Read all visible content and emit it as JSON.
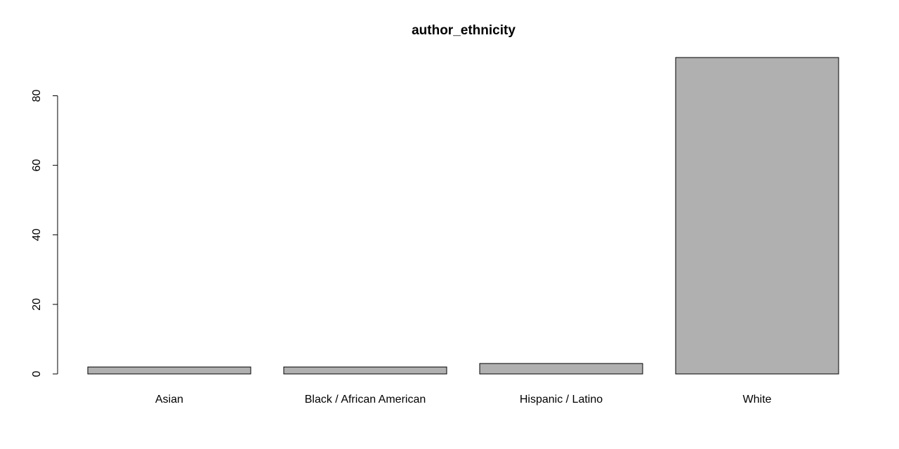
{
  "chart_data": {
    "type": "bar",
    "title": "author_ethnicity",
    "xlabel": "",
    "ylabel": "",
    "categories": [
      "Asian",
      "Black / African American",
      "Hispanic / Latino",
      "White"
    ],
    "values": [
      2,
      2,
      3,
      91
    ],
    "ylim": [
      0,
      91
    ],
    "yticks": [
      0,
      20,
      40,
      60,
      80
    ],
    "bar_color": "#b0b0b0",
    "border_color": "#000000",
    "grid": false,
    "legend": "none"
  }
}
